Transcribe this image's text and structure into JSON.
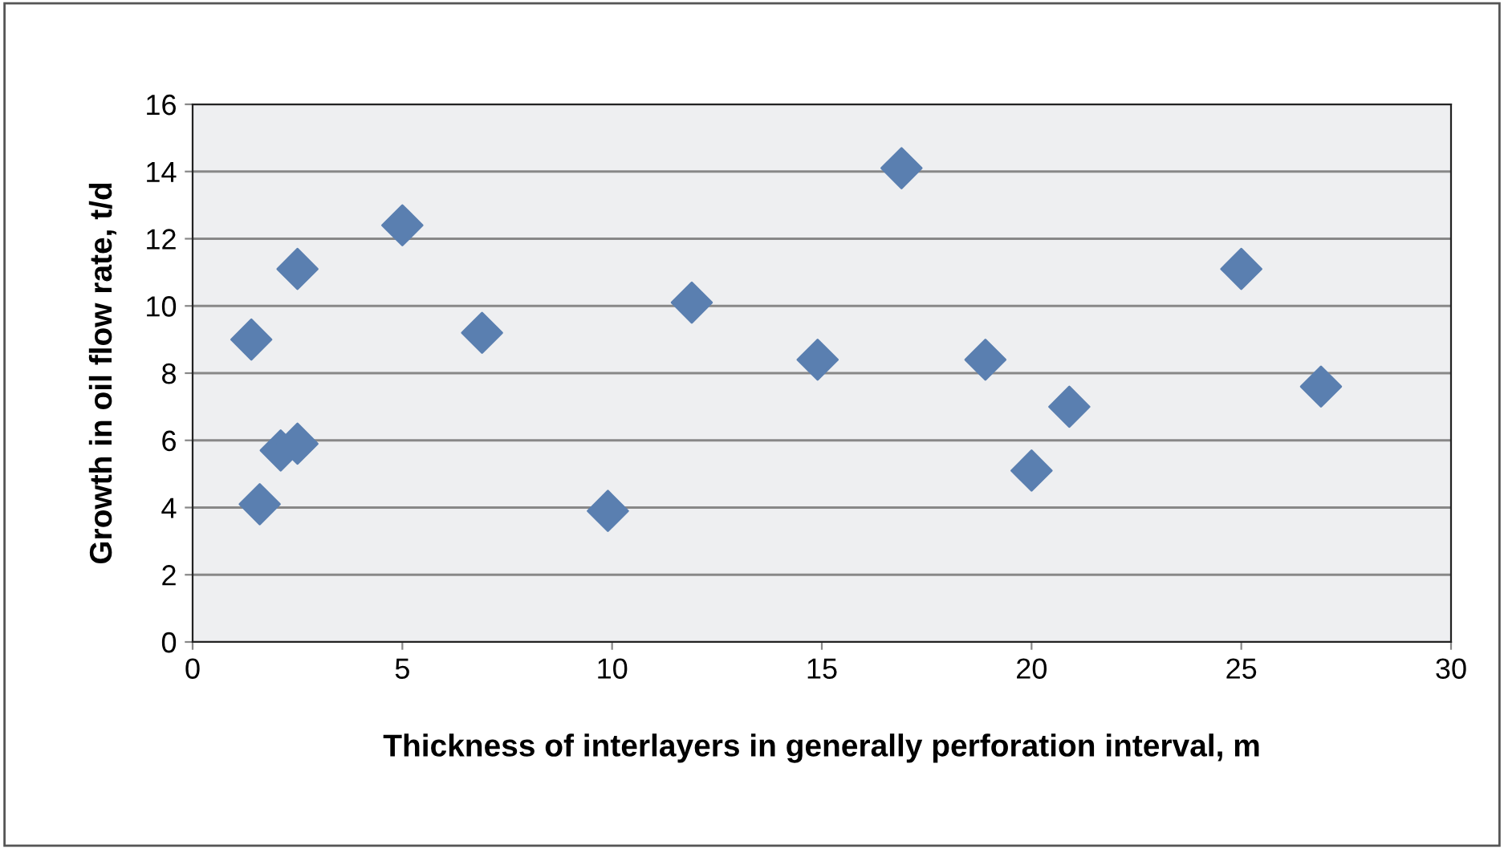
{
  "chart_data": {
    "type": "scatter",
    "xlabel": "Thickness of interlayers in generally perforation interval, m",
    "ylabel": "Growth in oil flow rate, t/d",
    "x": [
      1.4,
      1.6,
      2.1,
      2.5,
      2.5,
      5,
      6.9,
      9.9,
      11.9,
      14.9,
      16.9,
      18.9,
      20,
      20.9,
      25,
      26.9
    ],
    "series": [
      {
        "color": "#5a7fb0",
        "values": [
          9.0,
          4.1,
          5.7,
          5.9,
          11.1,
          12.4,
          9.2,
          3.9,
          10.1,
          8.4,
          14.1,
          8.4,
          5.1,
          7.0,
          11.1,
          7.6
        ]
      }
    ],
    "xlim": [
      0,
      30
    ],
    "xticks": [
      0,
      5,
      10,
      15,
      20,
      25,
      30
    ],
    "ylim": [
      0,
      16
    ],
    "yticks": [
      0,
      2,
      4,
      6,
      8,
      10,
      12,
      14,
      16
    ],
    "grid": "y",
    "marker": "diamond",
    "legend": false
  }
}
